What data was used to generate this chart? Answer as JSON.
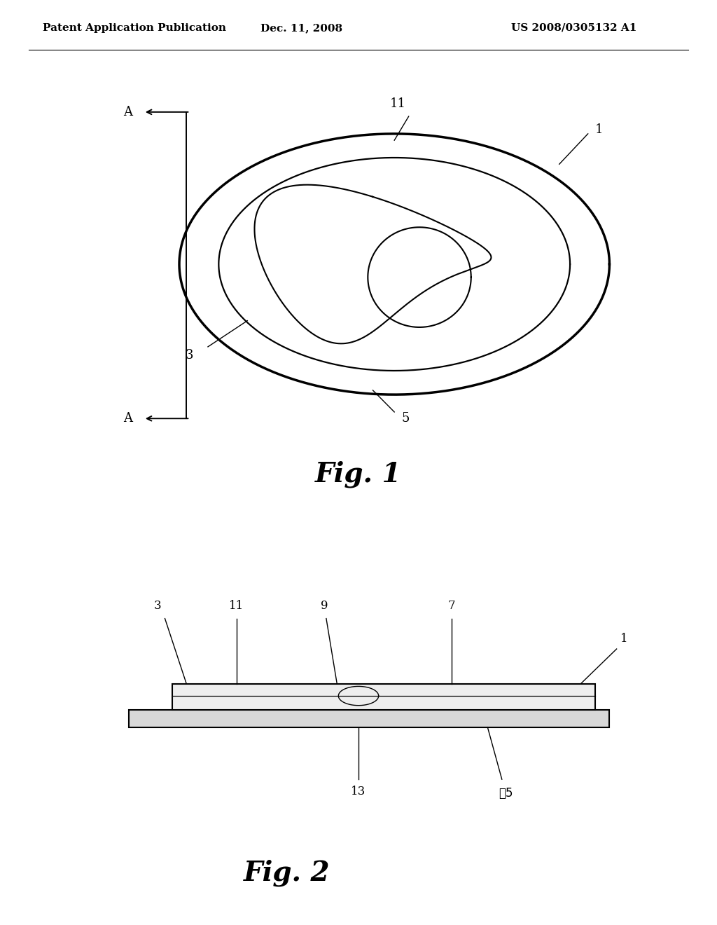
{
  "bg_color": "#ffffff",
  "line_color": "#000000",
  "header_left": "Patent Application Publication",
  "header_center": "Dec. 11, 2008",
  "header_right": "US 2008/0305132 A1",
  "fig1_label": "Fig. 1",
  "fig2_label": "Fig. 2",
  "label_fontsize": 12,
  "header_fontsize": 11,
  "fig_label_fontsize": 28
}
